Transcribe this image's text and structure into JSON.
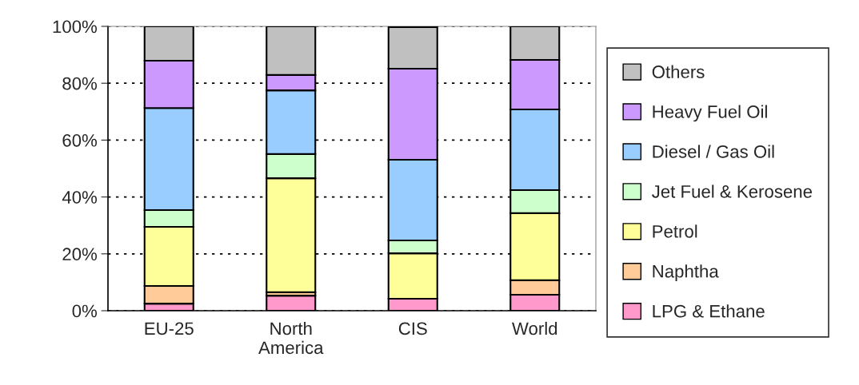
{
  "chart_data": {
    "type": "bar",
    "stacked": true,
    "categories": [
      "EU-25",
      "North\nAmerica",
      "CIS",
      "World"
    ],
    "series": [
      {
        "name": "LPG & Ethane",
        "color": "#ff99cc",
        "values": [
          2.5,
          5.3,
          4.2,
          5.6
        ]
      },
      {
        "name": "Naphtha",
        "color": "#ffcc99",
        "values": [
          6.2,
          1.2,
          null,
          5.1
        ]
      },
      {
        "name": "Petrol",
        "color": "#ffff99",
        "values": [
          20.8,
          40.1,
          16.0,
          23.6
        ]
      },
      {
        "name": "Jet Fuel & Kerosene",
        "color": "#ccffcc",
        "values": [
          5.9,
          8.5,
          4.5,
          8.1
        ]
      },
      {
        "name": "Diesel / Gas Oil",
        "color": "#99ccff",
        "values": [
          35.9,
          22.4,
          28.4,
          28.4
        ]
      },
      {
        "name": "Heavy Fuel Oil",
        "color": "#cc99ff",
        "values": [
          16.6,
          5.4,
          32.0,
          17.4
        ]
      },
      {
        "name": "Others",
        "color": "#c0c0c0",
        "values": [
          12.1,
          17.1,
          14.6,
          11.8
        ]
      }
    ],
    "ylim": [
      0,
      100
    ],
    "yticks": [
      {
        "value": 0,
        "label": "0%"
      },
      {
        "value": 20,
        "label": "20%"
      },
      {
        "value": 40,
        "label": "40%"
      },
      {
        "value": 60,
        "label": "60%"
      },
      {
        "value": 80,
        "label": "80%"
      },
      {
        "value": 100,
        "label": "100%"
      }
    ],
    "grid": "y",
    "legend": "right"
  }
}
